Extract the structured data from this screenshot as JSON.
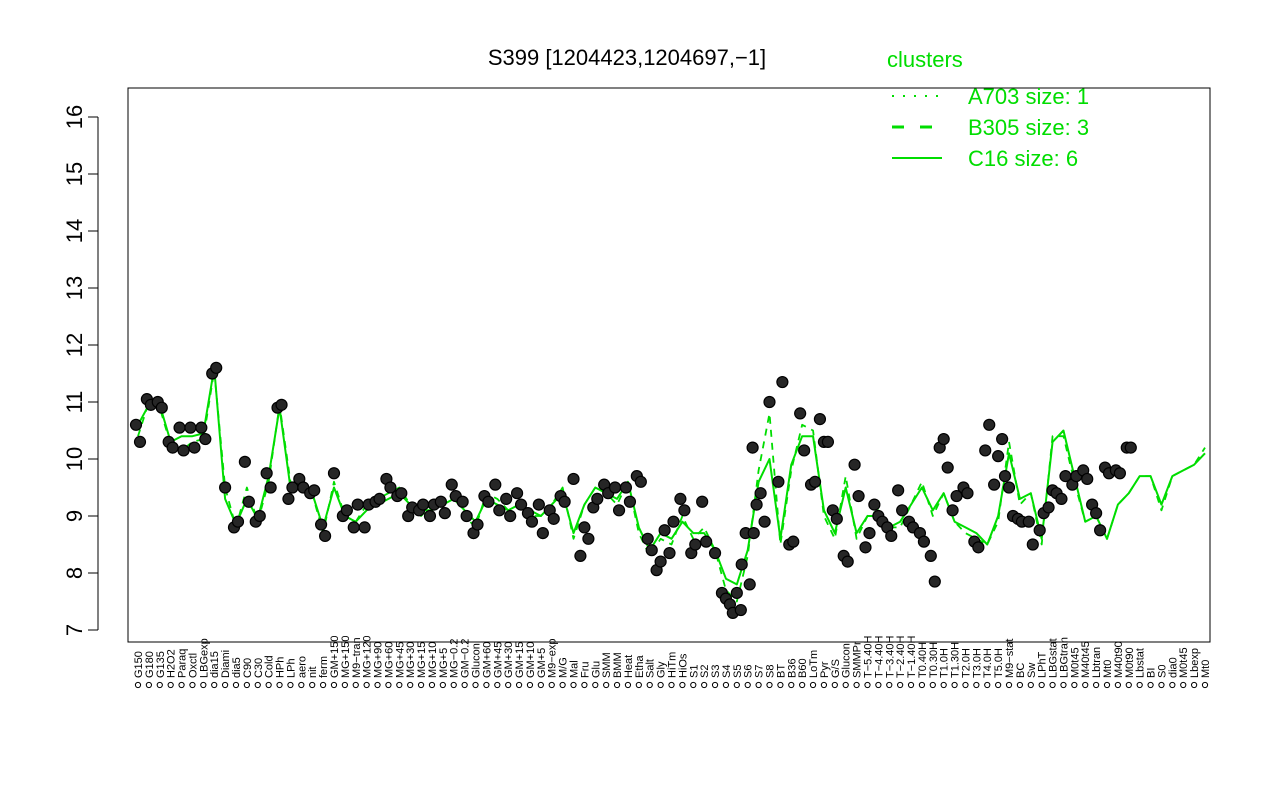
{
  "chart_data": {
    "type": "line",
    "title": "S399 [1204423,1204697,−1]",
    "xlabel": "",
    "ylabel": "",
    "ylim": [
      7,
      16
    ],
    "yticks": [
      7,
      8,
      9,
      10,
      11,
      12,
      13,
      14,
      15,
      16
    ],
    "legend": {
      "title": "clusters",
      "position": "top-right",
      "entries": [
        {
          "label": "A703 size: 1",
          "style": "dotted"
        },
        {
          "label": "B305 size: 3",
          "style": "dashed"
        },
        {
          "label": "C16 size: 6",
          "style": "solid"
        }
      ]
    },
    "xtick_labels": [
      "G150",
      "G180",
      "G135",
      "H2O2",
      "Paraq",
      "Oxctl",
      "LBGexp",
      "dia15",
      "Diami",
      "dia5",
      "C90",
      "C30",
      "Cold",
      "HPh",
      "LPh",
      "aero",
      "nit",
      "ferm",
      "GM+150",
      "MG+150",
      "M9−tran",
      "MG+120",
      "MG+90",
      "MG+60",
      "MG+45",
      "MG+30",
      "MG+15",
      "MG+10",
      "MG+5",
      "MG−0.2",
      "GM−0.2",
      "Glucon",
      "GM+60",
      "GM+45",
      "GM+30",
      "GM+15",
      "GM+10",
      "GM+5",
      "M9−exp",
      "M/G",
      "Mal",
      "Fru",
      "Glu",
      "SMM",
      "BMM",
      "Heat",
      "Etha",
      "Salt",
      "Gly",
      "HiTm",
      "HiOs",
      "S1",
      "S2",
      "S3",
      "S4",
      "S5",
      "S6",
      "S7",
      "S8",
      "BT",
      "B36",
      "B60",
      "LoTm",
      "Pyr",
      "G/S",
      "Glucon",
      "SMMPr",
      "T−5.40H",
      "T−4.40H",
      "T−3.40H",
      "T−2.40H",
      "T−1.40H",
      "T0.40H",
      "T0.30H",
      "T1.0H",
      "T1.30H",
      "T2.0H",
      "T3.0H",
      "T4.0H",
      "T5.0H",
      "M9−stat",
      "BC",
      "Sw",
      "LPhT",
      "LBGstat",
      "LBGtran",
      "M0t45",
      "M40t45",
      "Lbtran",
      "Mt0",
      "M40t90",
      "M0t90",
      "Lbstat",
      "BI",
      "S0",
      "dia0",
      "M0t45",
      "Lbexp",
      "Mt0"
    ],
    "series": [
      {
        "name": "",
        "line_style": "solid",
        "values": [
          10.6,
          10.95,
          10.95,
          10.3,
          10.4,
          10.4,
          10.45,
          11.6,
          9.3,
          8.85,
          9.3,
          8.95,
          9.7,
          10.9,
          9.5,
          9.5,
          9.4,
          8.8,
          9.5,
          9.0,
          8.9,
          9.1,
          9.2,
          9.3,
          9.4,
          9.2,
          9.1,
          9.1,
          9.2,
          9.3,
          9.1,
          8.9,
          9.3,
          9.2,
          9.1,
          9.2,
          9.1,
          9.0,
          9.2,
          9.4,
          8.7,
          9.2,
          9.5,
          9.4,
          9.3,
          9.6,
          8.8,
          8.4,
          8.7,
          8.6,
          8.9,
          8.7,
          8.7,
          8.4,
          7.9,
          7.8,
          8.4,
          9.6,
          10.0,
          8.6,
          9.9,
          10.4,
          10.4,
          9.1,
          8.7,
          9.5,
          8.7,
          9.0,
          9.0,
          8.8,
          8.9,
          9.2,
          9.5,
          9.1,
          9.4,
          8.9,
          8.8,
          8.7,
          8.5,
          9.0,
          10.1,
          9.3,
          9.4,
          8.6,
          10.3,
          10.5,
          9.7,
          8.9,
          9.0,
          8.6,
          9.2,
          9.4,
          9.7,
          9.7,
          9.2,
          9.7,
          9.8,
          9.9,
          10.1
        ]
      },
      {
        "name": "",
        "line_style": "dashed",
        "values": [
          10.4,
          11.0,
          10.9,
          10.25,
          10.15,
          10.3,
          10.35,
          11.55,
          9.5,
          8.8,
          9.5,
          8.9,
          9.6,
          10.95,
          9.6,
          9.5,
          9.4,
          8.7,
          9.6,
          9.0,
          8.9,
          9.2,
          9.3,
          9.4,
          9.5,
          9.2,
          9.0,
          9.2,
          9.2,
          9.4,
          9.0,
          8.8,
          9.4,
          9.3,
          9.1,
          9.2,
          9.0,
          9.0,
          9.2,
          9.5,
          8.6,
          9.2,
          9.5,
          9.4,
          9.2,
          9.6,
          8.7,
          8.3,
          8.6,
          8.5,
          9.0,
          8.6,
          8.8,
          8.4,
          7.7,
          7.5,
          8.3,
          9.8,
          10.8,
          8.5,
          9.8,
          10.6,
          10.5,
          9.0,
          8.6,
          9.7,
          8.6,
          9.0,
          9.1,
          8.8,
          8.8,
          9.2,
          9.6,
          9.0,
          9.4,
          8.9,
          8.7,
          8.6,
          8.5,
          8.9,
          10.3,
          9.2,
          9.4,
          8.5,
          10.4,
          10.4,
          9.6,
          8.9,
          9.0,
          8.6,
          9.2,
          9.4,
          9.7,
          9.7,
          9.1,
          9.7,
          9.8,
          9.9,
          10.2
        ]
      }
    ],
    "points": [
      {
        "x": 0,
        "y": [
          10.6,
          10.3
        ]
      },
      {
        "x": 1,
        "y": [
          11.05,
          10.95
        ]
      },
      {
        "x": 2,
        "y": [
          11.0,
          10.9
        ]
      },
      {
        "x": 3,
        "y": [
          10.3,
          10.2
        ]
      },
      {
        "x": 4,
        "y": [
          10.55,
          10.15
        ]
      },
      {
        "x": 5,
        "y": [
          10.55,
          10.2
        ]
      },
      {
        "x": 6,
        "y": [
          10.55,
          10.35
        ]
      },
      {
        "x": 7,
        "y": [
          11.5,
          11.6
        ]
      },
      {
        "x": 8,
        "y": [
          9.5
        ]
      },
      {
        "x": 9,
        "y": [
          8.8,
          8.9
        ]
      },
      {
        "x": 10,
        "y": [
          9.95,
          9.25
        ]
      },
      {
        "x": 11,
        "y": [
          8.9,
          9.0
        ]
      },
      {
        "x": 12,
        "y": [
          9.75,
          9.5
        ]
      },
      {
        "x": 13,
        "y": [
          10.9,
          10.95
        ]
      },
      {
        "x": 14,
        "y": [
          9.3,
          9.5
        ]
      },
      {
        "x": 15,
        "y": [
          9.65,
          9.5
        ]
      },
      {
        "x": 16,
        "y": [
          9.4,
          9.45
        ]
      },
      {
        "x": 17,
        "y": [
          8.85,
          8.65
        ]
      },
      {
        "x": 18,
        "y": [
          9.75
        ]
      },
      {
        "x": 19,
        "y": [
          9.0,
          9.1
        ]
      },
      {
        "x": 20,
        "y": [
          8.8,
          9.2
        ]
      },
      {
        "x": 21,
        "y": [
          8.8,
          9.2
        ]
      },
      {
        "x": 22,
        "y": [
          9.25,
          9.3
        ]
      },
      {
        "x": 23,
        "y": [
          9.65,
          9.5
        ]
      },
      {
        "x": 24,
        "y": [
          9.35,
          9.4
        ]
      },
      {
        "x": 25,
        "y": [
          9.0,
          9.15
        ]
      },
      {
        "x": 26,
        "y": [
          9.1,
          9.2
        ]
      },
      {
        "x": 27,
        "y": [
          9.0,
          9.2
        ]
      },
      {
        "x": 28,
        "y": [
          9.25,
          9.05
        ]
      },
      {
        "x": 29,
        "y": [
          9.55,
          9.35
        ]
      },
      {
        "x": 30,
        "y": [
          9.25,
          9.0
        ]
      },
      {
        "x": 31,
        "y": [
          8.7,
          8.85
        ]
      },
      {
        "x": 32,
        "y": [
          9.35,
          9.25
        ]
      },
      {
        "x": 33,
        "y": [
          9.55,
          9.1
        ]
      },
      {
        "x": 34,
        "y": [
          9.3,
          9.0
        ]
      },
      {
        "x": 35,
        "y": [
          9.4,
          9.2
        ]
      },
      {
        "x": 36,
        "y": [
          9.05,
          8.9
        ]
      },
      {
        "x": 37,
        "y": [
          9.2,
          8.7
        ]
      },
      {
        "x": 38,
        "y": [
          9.1,
          8.95
        ]
      },
      {
        "x": 39,
        "y": [
          9.35,
          9.25
        ]
      },
      {
        "x": 40,
        "y": [
          9.65
        ]
      },
      {
        "x": 41,
        "y": [
          8.3,
          8.8,
          8.6
        ]
      },
      {
        "x": 42,
        "y": [
          9.15,
          9.3
        ]
      },
      {
        "x": 43,
        "y": [
          9.55,
          9.4
        ]
      },
      {
        "x": 44,
        "y": [
          9.5,
          9.1
        ]
      },
      {
        "x": 45,
        "y": [
          9.5,
          9.25
        ]
      },
      {
        "x": 46,
        "y": [
          9.7,
          9.6
        ]
      },
      {
        "x": 47,
        "y": [
          8.6,
          8.4
        ]
      },
      {
        "x": 48,
        "y": [
          8.05,
          8.2,
          8.75
        ]
      },
      {
        "x": 49,
        "y": [
          8.35,
          8.9
        ]
      },
      {
        "x": 50,
        "y": [
          9.3,
          9.1
        ]
      },
      {
        "x": 51,
        "y": [
          8.35,
          8.5
        ]
      },
      {
        "x": 52,
        "y": [
          9.25,
          8.55
        ]
      },
      {
        "x": 53,
        "y": [
          8.35
        ]
      },
      {
        "x": 54,
        "y": [
          7.65,
          7.55,
          7.45
        ]
      },
      {
        "x": 55,
        "y": [
          7.3,
          7.65,
          7.35
        ]
      },
      {
        "x": 56,
        "y": [
          8.15,
          8.7,
          7.8,
          8.7
        ]
      },
      {
        "x": 57,
        "y": [
          10.2,
          9.2,
          9.4,
          8.9
        ]
      },
      {
        "x": 58,
        "y": [
          11.0
        ]
      },
      {
        "x": 59,
        "y": [
          9.6,
          11.35
        ]
      },
      {
        "x": 60,
        "y": [
          8.5,
          8.55
        ]
      },
      {
        "x": 61,
        "y": [
          10.8,
          10.15
        ]
      },
      {
        "x": 62,
        "y": [
          9.55,
          9.6
        ]
      },
      {
        "x": 63,
        "y": [
          10.7,
          10.3,
          10.3
        ]
      },
      {
        "x": 64,
        "y": [
          9.1,
          8.95
        ]
      },
      {
        "x": 65,
        "y": [
          8.3,
          8.2
        ]
      },
      {
        "x": 66,
        "y": [
          9.9,
          9.35
        ]
      },
      {
        "x": 67,
        "y": [
          8.45,
          8.7
        ]
      },
      {
        "x": 68,
        "y": [
          9.2,
          9.0,
          8.9
        ]
      },
      {
        "x": 69,
        "y": [
          8.8,
          8.65
        ]
      },
      {
        "x": 70,
        "y": [
          9.45,
          9.1
        ]
      },
      {
        "x": 71,
        "y": [
          8.9,
          8.8
        ]
      },
      {
        "x": 72,
        "y": [
          8.7,
          8.55
        ]
      },
      {
        "x": 73,
        "y": [
          8.3,
          7.85
        ]
      },
      {
        "x": 74,
        "y": [
          10.2,
          10.35,
          9.85
        ]
      },
      {
        "x": 75,
        "y": [
          9.1,
          9.35
        ]
      },
      {
        "x": 76,
        "y": [
          9.5,
          9.4
        ]
      },
      {
        "x": 77,
        "y": [
          8.55,
          8.45
        ]
      },
      {
        "x": 78,
        "y": [
          10.15,
          10.6
        ]
      },
      {
        "x": 79,
        "y": [
          9.55,
          10.05,
          10.35
        ]
      },
      {
        "x": 80,
        "y": [
          9.7,
          9.5,
          9.0
        ]
      },
      {
        "x": 81,
        "y": [
          8.95,
          8.9
        ]
      },
      {
        "x": 82,
        "y": [
          8.9,
          8.5
        ]
      },
      {
        "x": 83,
        "y": [
          8.75,
          9.05
        ]
      },
      {
        "x": 84,
        "y": [
          9.15,
          9.45,
          9.4
        ]
      },
      {
        "x": 85,
        "y": [
          9.3,
          9.7
        ]
      },
      {
        "x": 86,
        "y": [
          9.55,
          9.7
        ]
      },
      {
        "x": 87,
        "y": [
          9.8,
          9.65
        ]
      },
      {
        "x": 88,
        "y": [
          9.2,
          9.05,
          8.75
        ]
      },
      {
        "x": 89,
        "y": [
          9.85,
          9.75
        ]
      },
      {
        "x": 90,
        "y": [
          9.8,
          9.75
        ]
      },
      {
        "x": 91,
        "y": [
          10.2,
          10.2
        ]
      }
    ]
  }
}
